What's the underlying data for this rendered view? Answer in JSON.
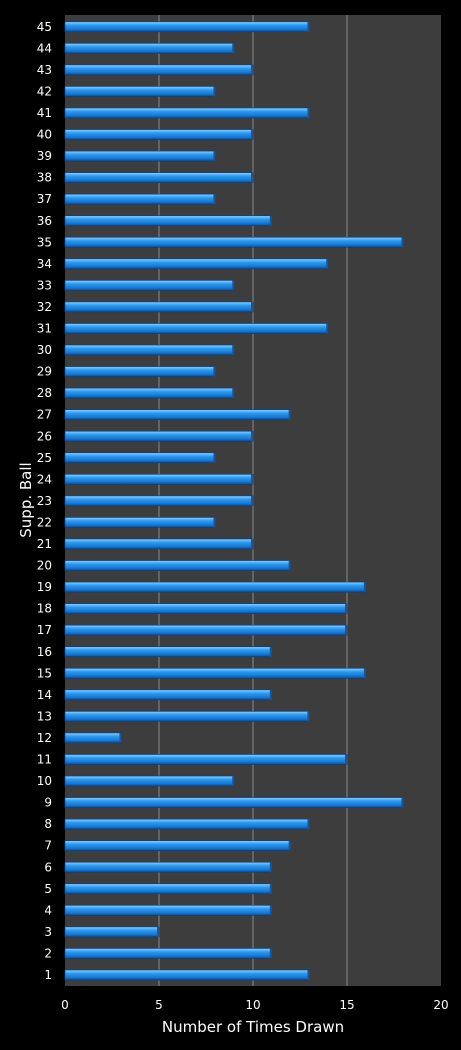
{
  "chart_data": {
    "type": "bar",
    "orientation": "horizontal",
    "title": "",
    "xlabel": "Number of Times Drawn",
    "ylabel": "Supp. Ball",
    "xlim": [
      0,
      20
    ],
    "xticks": [
      0,
      5,
      10,
      15,
      20
    ],
    "grid": "vertical",
    "legend": "none",
    "colors": {
      "bar": "#1f8fe8",
      "bar_light": "#7cc4ff",
      "bar_dark": "#0b4f9a",
      "plot_bg": "#3d3d3d",
      "page_bg": "#000000",
      "grid": "#8a8a8a"
    },
    "categories": [
      "1",
      "2",
      "3",
      "4",
      "5",
      "6",
      "7",
      "8",
      "9",
      "10",
      "11",
      "12",
      "13",
      "14",
      "15",
      "16",
      "17",
      "18",
      "19",
      "20",
      "21",
      "22",
      "23",
      "24",
      "25",
      "26",
      "27",
      "28",
      "29",
      "30",
      "31",
      "32",
      "33",
      "34",
      "35",
      "36",
      "37",
      "38",
      "39",
      "40",
      "41",
      "42",
      "43",
      "44",
      "45"
    ],
    "values": [
      13,
      11,
      5,
      11,
      11,
      11,
      12,
      13,
      18,
      9,
      15,
      3,
      13,
      11,
      16,
      11,
      15,
      15,
      16,
      12,
      10,
      8,
      10,
      10,
      8,
      10,
      12,
      9,
      8,
      9,
      14,
      10,
      9,
      14,
      18,
      11,
      8,
      10,
      8,
      10,
      13,
      8,
      10,
      9,
      13
    ]
  }
}
